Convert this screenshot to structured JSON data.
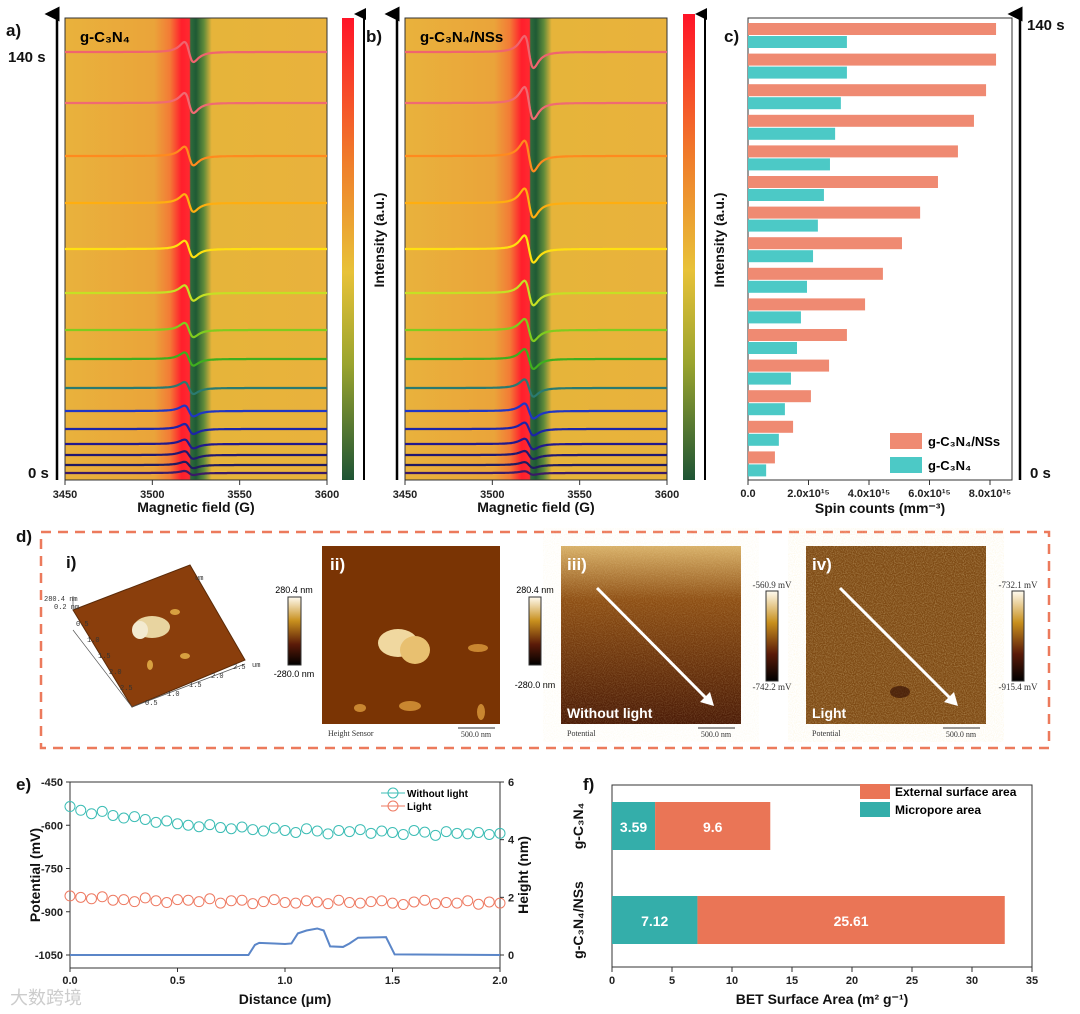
{
  "chart_data": [
    {
      "panel": "a)",
      "type": "line",
      "title": "g-C₃N₄",
      "xlabel": "Magnetic field (G)",
      "colorbar_label": "Intensity (a.u.)",
      "x_ticks": [
        "3450",
        "3500",
        "3550",
        "3600"
      ],
      "xlim": [
        3450,
        3600
      ],
      "time_top": "140 s",
      "time_bottom": "0 s",
      "series_relative_intensity_top_to_bottom": [
        1.0,
        1.0,
        0.94,
        0.88,
        0.83,
        0.77,
        0.71,
        0.66,
        0.6,
        0.54,
        0.5,
        0.44,
        0.38,
        0.32,
        0.2
      ],
      "trace_colors": [
        "#f0646e",
        "#f06a72",
        "#ff8a1e",
        "#ffae10",
        "#ffe010",
        "#c6e024",
        "#80cc1e",
        "#3fae1e",
        "#2a7a70",
        "#2036c4",
        "#1c24a8",
        "#22198c",
        "#211870",
        "#201a60",
        "#3a1a66"
      ]
    },
    {
      "panel": "b)",
      "type": "line",
      "title": "g-C₃N₄/NSs",
      "xlabel": "Magnetic field (G)",
      "colorbar_label": "Intensity (a.u.)",
      "x_ticks": [
        "3450",
        "3500",
        "3550",
        "3600"
      ],
      "xlim": [
        3450,
        3600
      ],
      "series_relative_intensity_top_to_bottom": [
        1.0,
        1.0,
        0.96,
        0.91,
        0.85,
        0.77,
        0.69,
        0.62,
        0.54,
        0.47,
        0.4,
        0.33,
        0.25,
        0.18,
        0.11
      ]
    },
    {
      "panel": "c)",
      "type": "bar",
      "orientation": "horizontal",
      "xlabel": "Spin counts (mm⁻³)",
      "x_ticks": [
        "0.0",
        "2.0x10¹⁵",
        "4.0x10¹⁵",
        "6.0x10¹⁵",
        "8.0x10¹⁵"
      ],
      "xlim": [
        0,
        8600000000000000.0
      ],
      "time_top": "140 s",
      "time_bottom": "0 s",
      "legend": "bottom-right",
      "series": [
        {
          "name": "g-C₃N₄/NSs",
          "color": "#ef8a72",
          "values_e15_top_to_bottom": [
            8.2,
            8.2,
            7.87,
            7.47,
            6.94,
            6.28,
            5.69,
            5.09,
            4.46,
            3.87,
            3.27,
            2.68,
            2.08,
            1.49,
            0.89
          ]
        },
        {
          "name": "g-C₃N₄",
          "color": "#4cc9c6",
          "values_e15_top_to_bottom": [
            3.27,
            3.27,
            3.07,
            2.88,
            2.71,
            2.51,
            2.31,
            2.15,
            1.95,
            1.75,
            1.62,
            1.42,
            1.22,
            1.02,
            0.6
          ]
        }
      ]
    },
    {
      "panel": "e)",
      "type": "scatter",
      "xlabel": "Distance (μm)",
      "ylabel": "Potential (mV)",
      "y2label": "Height (nm)",
      "xlim": [
        0,
        2.0
      ],
      "ylim": [
        -1110,
        -450
      ],
      "y2lim": [
        -0.4,
        6
      ],
      "x_ticks": [
        "0.0",
        "0.5",
        "1.0",
        "1.5",
        "2.0"
      ],
      "y_ticks": [
        "-450",
        "-600",
        "-750",
        "-900",
        "-1050"
      ],
      "y2_ticks": [
        "0",
        "2",
        "4",
        "6"
      ],
      "legend": "top-right",
      "series": [
        {
          "name": "Without light",
          "color": "#3cbdb5",
          "x_step": 0.05,
          "values": [
            -535,
            -548,
            -560,
            -552,
            -566,
            -575,
            -570,
            -580,
            -590,
            -585,
            -595,
            -600,
            -605,
            -598,
            -608,
            -612,
            -606,
            -615,
            -620,
            -610,
            -618,
            -625,
            -612,
            -620,
            -630,
            -618,
            -622,
            -615,
            -628,
            -620,
            -625,
            -632,
            -618,
            -624,
            -635,
            -622,
            -628,
            -630,
            -625,
            -632,
            -628
          ]
        },
        {
          "name": "Light",
          "color": "#ee7a62",
          "x_step": 0.05,
          "values": [
            -845,
            -850,
            -855,
            -848,
            -860,
            -858,
            -865,
            -852,
            -862,
            -868,
            -858,
            -860,
            -865,
            -855,
            -870,
            -862,
            -860,
            -872,
            -865,
            -858,
            -868,
            -870,
            -862,
            -866,
            -872,
            -860,
            -868,
            -870,
            -865,
            -862,
            -870,
            -875,
            -866,
            -860,
            -872,
            -868,
            -870,
            -862,
            -874,
            -866,
            -870
          ]
        },
        {
          "name": "Height",
          "color": "#5b86c8",
          "axis": "y2",
          "points": [
            [
              0,
              0
            ],
            [
              0.83,
              0
            ],
            [
              0.86,
              0.35
            ],
            [
              0.88,
              0.42
            ],
            [
              0.95,
              0.4
            ],
            [
              1.0,
              0.38
            ],
            [
              1.03,
              0.4
            ],
            [
              1.06,
              0.75
            ],
            [
              1.1,
              0.85
            ],
            [
              1.15,
              0.92
            ],
            [
              1.18,
              0.85
            ],
            [
              1.21,
              0.3
            ],
            [
              1.27,
              0.28
            ],
            [
              1.3,
              0.4
            ],
            [
              1.34,
              0.6
            ],
            [
              1.47,
              0.62
            ],
            [
              1.51,
              0.02
            ],
            [
              2.0,
              0
            ]
          ]
        }
      ]
    },
    {
      "panel": "f)",
      "type": "bar",
      "orientation": "horizontal",
      "stacked": true,
      "xlabel": "BET Surface Area (m² g⁻¹)",
      "xlim": [
        0,
        35
      ],
      "x_ticks": [
        "0",
        "5",
        "10",
        "15",
        "20",
        "25",
        "30",
        "35"
      ],
      "categories": [
        "g-C₃N₄",
        "g-C₃N₄/NSs"
      ],
      "legend": "top-right",
      "series": [
        {
          "name": "Micropore area",
          "color": "#34aeaa",
          "values": [
            3.59,
            7.12
          ],
          "labels": [
            "3.59",
            "7.12"
          ]
        },
        {
          "name": "External surface area",
          "color": "#ea7556",
          "values": [
            9.6,
            25.61
          ],
          "labels": [
            "9.6",
            "25.61"
          ]
        }
      ]
    }
  ],
  "panel_d": {
    "label": "d)",
    "i": {
      "label": "i)",
      "z_top": "280.4 nm",
      "z_mid": "0.2 nm",
      "axis_unit": "um",
      "ticks": [
        "0.5",
        "1.0",
        "1.5",
        "2.0",
        "2.5"
      ],
      "colorbar_max": "280.4 nm",
      "colorbar_min": "-280.0 nm"
    },
    "ii": {
      "label": "ii)",
      "channel": "Height Sensor",
      "scale": "500.0 nm",
      "colorbar_max": "280.4 nm",
      "colorbar_min": "-280.0 nm"
    },
    "iii": {
      "label": "iii)",
      "caption": "Without light",
      "channel": "Potential",
      "scale": "500.0 nm",
      "colorbar_max": "-560.9 mV",
      "colorbar_min": "-742.2 mV"
    },
    "iv": {
      "label": "iv)",
      "caption": "Light",
      "channel": "Potential",
      "scale": "500.0 nm",
      "colorbar_max": "-732.1 mV",
      "colorbar_min": "-915.4 mV"
    }
  },
  "watermark": "大数跨境"
}
